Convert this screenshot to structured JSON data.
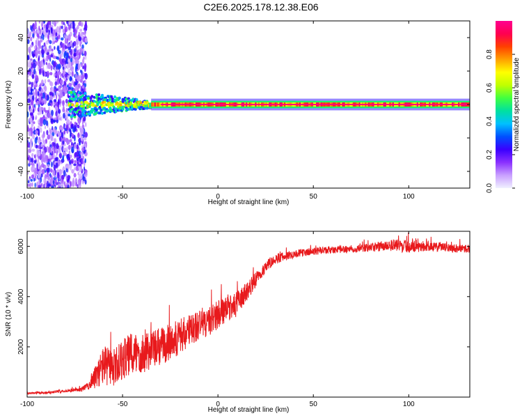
{
  "title": "C2E6.2025.178.12.38.E06",
  "colors": {
    "snr_line": "#e8191c",
    "axis": "#000000",
    "colormap": [
      "#f0f0ff",
      "#c9a0ff",
      "#8a30ff",
      "#3a00ff",
      "#0050ff",
      "#00c0ff",
      "#00e0a0",
      "#40ff40",
      "#c0ff00",
      "#ffff00",
      "#ffa000",
      "#ff4000",
      "#ff0050",
      "#ff0090"
    ]
  },
  "chart_data": [
    {
      "type": "heatmap",
      "xlabel": "Height of straight line (km)",
      "ylabel": "Frequency (Hz)",
      "xlim": [
        -100,
        132
      ],
      "ylim": [
        -50,
        50
      ],
      "xticks": [
        -100,
        -50,
        0,
        50,
        100
      ],
      "yticks": [
        -40,
        -20,
        0,
        20,
        40
      ],
      "colorbar": {
        "label": "Normalized spectral amplitude",
        "range": [
          0,
          1
        ],
        "ticks": [
          "0.0",
          "0.2",
          "0.4",
          "0.6",
          "0.8"
        ]
      },
      "regions": [
        {
          "description_x": [
            -100,
            -69
          ],
          "pattern": "broadband noise",
          "amplitude": 0.15
        },
        {
          "x": [
            -78,
            -35
          ],
          "freq_center": 0,
          "freq_halfwidth": 4,
          "amplitude": 0.5
        },
        {
          "x": [
            -35,
            132
          ],
          "freq_center": 0,
          "freq_halfwidth": 1,
          "amplitude": 0.95
        }
      ]
    },
    {
      "type": "line",
      "xlabel": "Height of straight line (km)",
      "ylabel": "SNR (10 * v/v)",
      "xlim": [
        -100,
        132
      ],
      "ylim": [
        0,
        6600
      ],
      "xticks": [
        -100,
        -50,
        0,
        50,
        100
      ],
      "yticks": [
        2000,
        4000,
        6000
      ],
      "series": [
        {
          "x": [
            -100,
            -90,
            -80,
            -72,
            -68,
            -65,
            -60,
            -55,
            -50,
            -45,
            -40,
            -35,
            -30,
            -25,
            -20,
            -15,
            -10,
            -5,
            0,
            5,
            10,
            15,
            20,
            25,
            30,
            35,
            40,
            50,
            60,
            70,
            80,
            90,
            100,
            110,
            120,
            132
          ],
          "y": [
            150,
            180,
            250,
            300,
            450,
            700,
            1300,
            1100,
            1500,
            1700,
            1800,
            1900,
            2000,
            2200,
            2400,
            2600,
            2900,
            3000,
            3300,
            3500,
            3700,
            4200,
            4700,
            5200,
            5500,
            5600,
            5700,
            5800,
            5850,
            5900,
            5950,
            6050,
            6000,
            6000,
            5950,
            5900
          ],
          "noise": [
            40,
            50,
            60,
            80,
            150,
            400,
            800,
            800,
            800,
            900,
            900,
            800,
            800,
            750,
            700,
            700,
            650,
            600,
            600,
            500,
            500,
            400,
            300,
            250,
            200,
            180,
            160,
            150,
            150,
            150,
            170,
            250,
            250,
            200,
            180,
            160
          ]
        }
      ]
    }
  ]
}
